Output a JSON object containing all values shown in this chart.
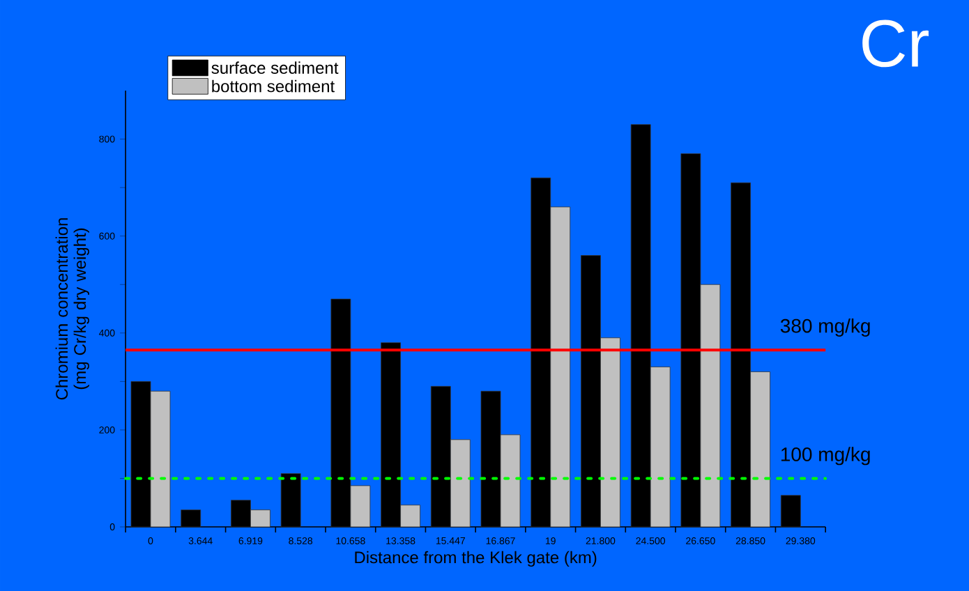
{
  "chart_data": {
    "type": "bar",
    "title": "Cr",
    "xlabel": "Distance from the Klek gate (km)",
    "ylabel": "Chromium concentration (mg Cr/kg dry weight)",
    "categories": [
      "0",
      "3.644",
      "6.919",
      "8.528",
      "10.658",
      "13.358",
      "15.447",
      "16.867",
      "19",
      "21.800",
      "24.500",
      "26.650",
      "28.850",
      "29.380"
    ],
    "series": [
      {
        "name": "surface sediment",
        "color": "#000000",
        "values": [
          300,
          35,
          55,
          110,
          470,
          380,
          290,
          280,
          720,
          560,
          830,
          770,
          710,
          65
        ]
      },
      {
        "name": "bottom sediment",
        "color": "#c0c0c0",
        "values": [
          280,
          null,
          35,
          null,
          85,
          45,
          180,
          190,
          660,
          390,
          330,
          500,
          320,
          null
        ]
      }
    ],
    "ylim": [
      0,
      900
    ],
    "yticks": [
      0,
      {
        "value": 100,
        "label": null
      },
      200,
      {
        "value": 300,
        "label": null
      },
      400,
      {
        "value": 500,
        "label": null
      },
      600,
      {
        "value": 700,
        "label": null
      },
      800
    ],
    "ref_lines": [
      {
        "axis": "y",
        "value": 365,
        "label": "380 mg/kg",
        "color": "#ff0000",
        "line_style": "solid"
      },
      {
        "axis": "y",
        "value": 100,
        "label": "100 mg/kg",
        "color": "#00ff00",
        "line_style": "dotted"
      }
    ],
    "legend": "top left"
  }
}
